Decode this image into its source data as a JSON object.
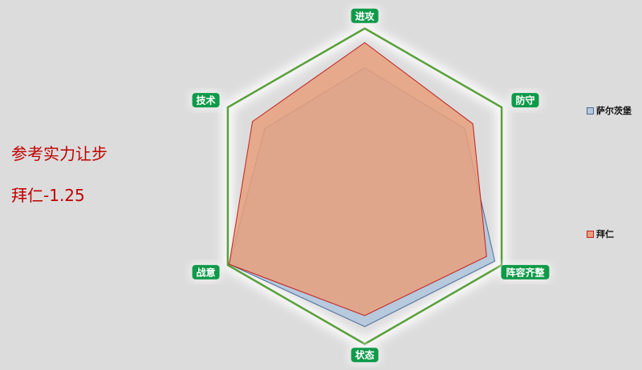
{
  "notes": {
    "line1": "参考实力让步",
    "line2": "拜仁-1.25"
  },
  "chart_data": {
    "type": "radar",
    "categories": [
      "进攻",
      "防守",
      "阵容齐整",
      "状态",
      "战意",
      "技术"
    ],
    "range": [
      0,
      100
    ],
    "series": [
      {
        "name": "萨尔茨堡",
        "values": [
          75,
          73,
          95,
          89,
          99,
          73
        ],
        "color": "#b7c9dc",
        "stroke": "#4a6a9a"
      },
      {
        "name": "拜仁",
        "values": [
          91,
          79,
          89,
          82,
          99,
          82
        ],
        "color": "#e8a07c",
        "stroke": "#c02020"
      }
    ],
    "legend_position": "right",
    "grid_color": "#5aa03c",
    "label_color": "#0f9a4a"
  }
}
